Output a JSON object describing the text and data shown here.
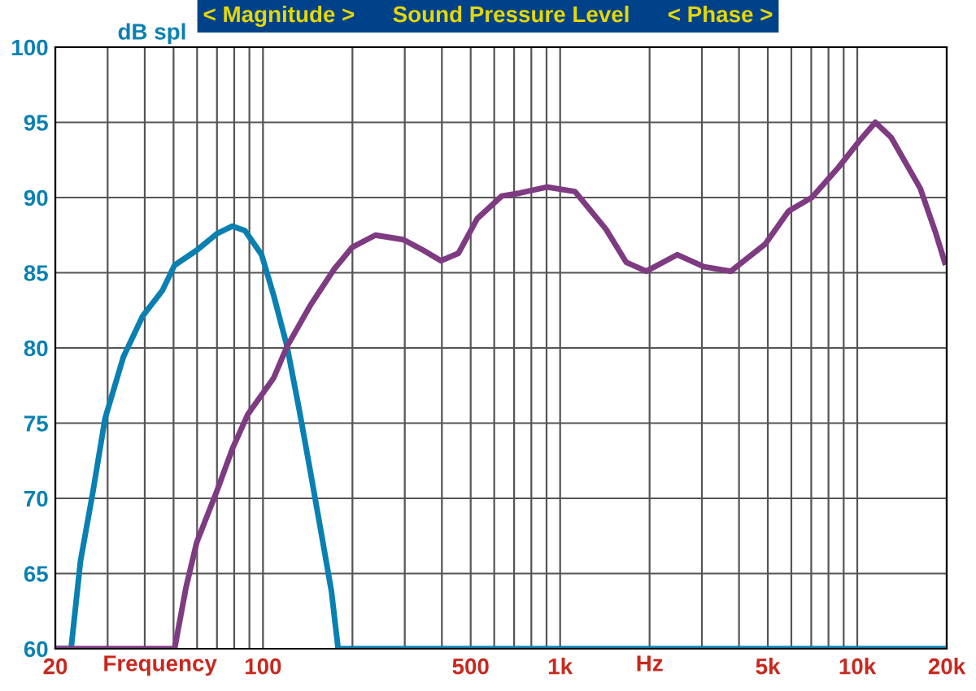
{
  "chart_data": {
    "type": "line",
    "title": "< Magnitude >      Sound Pressure Level      < Phase >",
    "xlabel": "Frequency",
    "ylabel": "dB spl",
    "annotations": [
      "Hz"
    ],
    "log": "x",
    "grid": true,
    "marker": "none",
    "line_style": "solid",
    "xlim": [
      20,
      20000
    ],
    "ylim": [
      60,
      100
    ],
    "xticks": [
      20,
      {
        "value": 30,
        "label": null
      },
      {
        "value": 40,
        "label": null
      },
      {
        "value": 50,
        "label": null
      },
      {
        "value": 60,
        "label": null
      },
      {
        "value": 70,
        "label": null
      },
      {
        "value": 80,
        "label": null
      },
      {
        "value": 90,
        "label": null
      },
      100,
      {
        "value": 200,
        "label": null
      },
      {
        "value": 300,
        "label": null
      },
      {
        "value": 400,
        "label": null
      },
      500,
      {
        "value": 600,
        "label": null
      },
      {
        "value": 700,
        "label": null
      },
      {
        "value": 800,
        "label": null
      },
      {
        "value": 900,
        "label": null
      },
      {
        "value": 1000,
        "label": "1k"
      },
      {
        "value": 2000,
        "label": null
      },
      {
        "value": 3000,
        "label": null
      },
      {
        "value": 4000,
        "label": null
      },
      {
        "value": 5000,
        "label": "5k"
      },
      {
        "value": 6000,
        "label": null
      },
      {
        "value": 7000,
        "label": null
      },
      {
        "value": 8000,
        "label": null
      },
      {
        "value": 9000,
        "label": null
      },
      {
        "value": 10000,
        "label": "10k"
      },
      {
        "value": 20000,
        "label": "20k"
      }
    ],
    "yticks": [
      60,
      65,
      70,
      75,
      80,
      85,
      90,
      95,
      100
    ],
    "series": [
      {
        "color": "#0a80b2",
        "x": [
          20,
          22.6,
          24.3,
          26.8,
          29.4,
          33.9,
          39.3,
          45.8,
          50.4,
          59.9,
          70,
          78.9,
          87,
          98.9,
          108.6,
          120.5,
          132.1,
          144,
          158,
          170,
          179,
          20000
        ],
        "values": [
          60,
          60,
          65.8,
          70.5,
          75.3,
          79.4,
          82.1,
          83.8,
          85.5,
          86.5,
          87.6,
          88.1,
          87.8,
          86.2,
          83.5,
          80.1,
          76,
          71.9,
          67.4,
          63.8,
          60,
          60
        ]
      },
      {
        "color": "#7e3b82",
        "x": [
          20,
          50.4,
          55.1,
          59.9,
          70,
          78.9,
          89,
          108.6,
          120.5,
          144,
          173,
          199.7,
          239,
          296.6,
          346,
          397,
          455,
          526,
          636,
          733,
          902,
          1122,
          1426,
          1668,
          1950,
          2480,
          3050,
          3750,
          4900,
          5870,
          7030,
          8640,
          10100,
          11500,
          13000,
          16300,
          18400,
          19700
        ],
        "values": [
          60,
          60,
          64.1,
          67.1,
          70.5,
          73.3,
          75.6,
          78,
          80.1,
          82.8,
          85.2,
          86.7,
          87.5,
          87.2,
          86.5,
          85.8,
          86.3,
          88.6,
          90.1,
          90.3,
          90.7,
          90.4,
          87.9,
          85.7,
          85.1,
          86.2,
          85.4,
          85.1,
          86.9,
          89.1,
          90,
          92,
          93.7,
          95,
          94,
          90.6,
          87.6,
          85.7
        ]
      }
    ]
  }
}
